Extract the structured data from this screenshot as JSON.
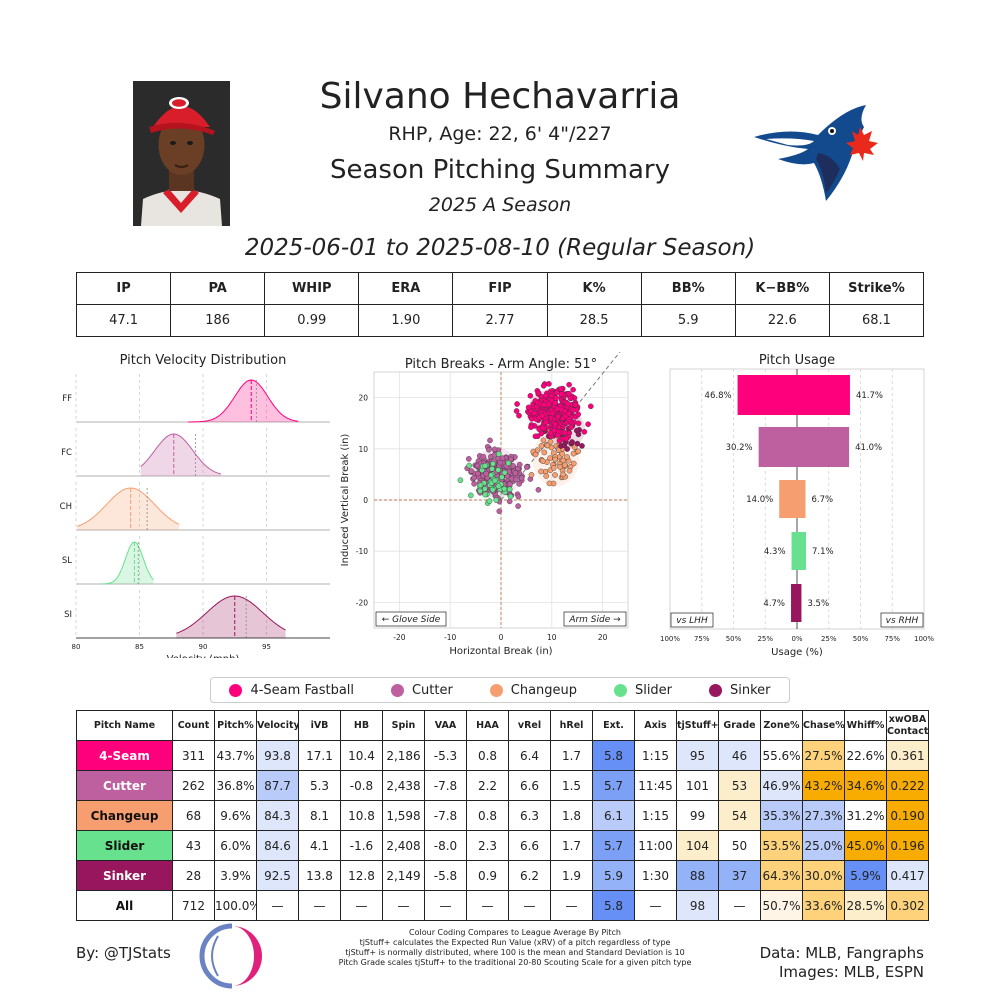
{
  "header": {
    "name": "Silvano Hechavarria",
    "bio": "RHP, Age: 22, 6' 4\"/227",
    "summary_title": "Season Pitching Summary",
    "season": "2025 A Season",
    "date_range": "2025-06-01 to 2025-08-10 (Regular Season)"
  },
  "season_stats": {
    "headers": [
      "IP",
      "PA",
      "WHIP",
      "ERA",
      "FIP",
      "K%",
      "BB%",
      "K−BB%",
      "Strike%"
    ],
    "values": [
      "47.1",
      "186",
      "0.99",
      "1.90",
      "2.77",
      "28.5",
      "5.9",
      "22.6",
      "68.1"
    ]
  },
  "pitch_colors": {
    "4-Seam": "#FF007D",
    "Cutter": "#BE5FA0",
    "Changeup": "#F79E70",
    "Slider": "#67E18D",
    "Sinker": "#98165D"
  },
  "legend": [
    "4-Seam Fastball",
    "Cutter",
    "Changeup",
    "Slider",
    "Sinker"
  ],
  "chart_data": [
    {
      "type": "area",
      "title": "Pitch Velocity Distribution",
      "xlabel": "Velocity (mph)",
      "xlim": [
        80,
        100
      ],
      "xticks": [
        80,
        85,
        90,
        95
      ],
      "series": [
        {
          "name": "FF",
          "color": "#FF007D",
          "mean": 93.8,
          "league_mean": 94.2,
          "sd": 1.3,
          "min": 88.8,
          "max": 97.5
        },
        {
          "name": "FC",
          "color": "#BE5FA0",
          "mean": 87.7,
          "league_mean": 89.4,
          "sd": 1.5,
          "min": 85.1,
          "max": 91.4
        },
        {
          "name": "CH",
          "color": "#F79E70",
          "mean": 84.3,
          "league_mean": 85.6,
          "sd": 1.9,
          "min": 80.1,
          "max": 88.1
        },
        {
          "name": "SL",
          "color": "#67E18D",
          "mean": 84.6,
          "league_mean": 84.9,
          "sd": 0.7,
          "min": 82.0,
          "max": 86.1
        },
        {
          "name": "SI",
          "color": "#98165D",
          "mean": 92.5,
          "league_mean": 93.4,
          "sd": 2.2,
          "min": 87.9,
          "max": 96.5
        }
      ]
    },
    {
      "type": "scatter",
      "title": "Pitch Breaks - Arm Angle: 51°",
      "xlabel": "Horizontal Break (in)",
      "ylabel": "Induced Vertical Break (in)",
      "xlim": [
        -25,
        25
      ],
      "ylim": [
        -25,
        25
      ],
      "xticks": [
        -20,
        -10,
        0,
        10,
        20
      ],
      "yticks": [
        -20,
        -10,
        0,
        10,
        20
      ],
      "arm_angle_deg": 51,
      "glove_label": "← Glove Side",
      "arm_label": "Arm Side →",
      "series": [
        {
          "name": "4-Seam",
          "color": "#FF007D",
          "center": [
            10.4,
            17.1
          ],
          "spread": [
            2.5,
            2.2
          ],
          "n": 311
        },
        {
          "name": "Cutter",
          "color": "#BE5FA0",
          "center": [
            -0.8,
            5.3
          ],
          "spread": [
            2.3,
            2.3
          ],
          "n": 262
        },
        {
          "name": "Changeup",
          "color": "#F79E70",
          "center": [
            10.8,
            8.1
          ],
          "spread": [
            2.2,
            2.6
          ],
          "n": 68
        },
        {
          "name": "Slider",
          "color": "#67E18D",
          "center": [
            -1.6,
            4.1
          ],
          "spread": [
            2.0,
            2.0
          ],
          "n": 43
        },
        {
          "name": "Sinker",
          "color": "#98165D",
          "center": [
            12.8,
            13.8
          ],
          "spread": [
            1.8,
            1.8
          ],
          "n": 28
        }
      ]
    },
    {
      "type": "bar",
      "title": "Pitch Usage",
      "xlabel": "Usage (%)",
      "xlim": [
        -100,
        100
      ],
      "xtick_labels": [
        "100%",
        "75%",
        "50%",
        "25%",
        "0%",
        "25%",
        "50%",
        "75%",
        "100%"
      ],
      "left_label": "vs LHH",
      "right_label": "vs RHH",
      "categories": [
        "4-Seam",
        "Cutter",
        "Changeup",
        "Slider",
        "Sinker"
      ],
      "series": [
        {
          "name": "vs LHH",
          "values": [
            46.8,
            30.2,
            14.0,
            4.3,
            4.7
          ],
          "labels": [
            "46.8%",
            "30.2%",
            "14.0%",
            "4.3%",
            "4.7%"
          ]
        },
        {
          "name": "vs RHH",
          "values": [
            41.7,
            41.0,
            6.7,
            7.1,
            3.5
          ],
          "labels": [
            "41.7%",
            "41.0%",
            "6.7%",
            "7.1%",
            "3.5%"
          ]
        }
      ]
    }
  ],
  "pitch_table": {
    "headers": [
      "Pitch Name",
      "Count",
      "Pitch%",
      "Velocity",
      "iVB",
      "HB",
      "Spin",
      "VAA",
      "HAA",
      "vRel",
      "hRel",
      "Ext.",
      "Axis",
      "tjStuff+",
      "Grade",
      "Zone%",
      "Chase%",
      "Whiff%",
      "xwOBA Contact"
    ],
    "rows": [
      {
        "name": "4-Seam",
        "bg": "#FF007D",
        "fg": "#ffffff",
        "cells": [
          "311",
          "43.7%",
          "93.8",
          "17.1",
          "10.4",
          "2,186",
          "-5.3",
          "0.8",
          "6.4",
          "1.7",
          "5.8",
          "1:15",
          "95",
          "46",
          "55.6%",
          "27.5%",
          "22.6%",
          "0.361"
        ],
        "colors": [
          "",
          "",
          "#dde6fb",
          "",
          "",
          "",
          "",
          "",
          "",
          "",
          "#6690f5",
          "",
          "#dde6fb",
          "#dde6fb",
          "",
          "#fdd27a",
          "",
          "#fdeecb"
        ]
      },
      {
        "name": "Cutter",
        "bg": "#BE5FA0",
        "fg": "#ffffff",
        "cells": [
          "262",
          "36.8%",
          "87.7",
          "5.3",
          "-0.8",
          "2,438",
          "-7.8",
          "2.2",
          "6.6",
          "1.5",
          "5.7",
          "11:45",
          "101",
          "53",
          "46.9%",
          "43.2%",
          "34.6%",
          "0.222"
        ],
        "colors": [
          "",
          "",
          "#b9ccf9",
          "",
          "",
          "",
          "",
          "",
          "",
          "",
          "#7ba0f6",
          "",
          "",
          "#fdeecb",
          "#dde6fb",
          "#f8ab00",
          "#f8ab00",
          "#f8ab00"
        ]
      },
      {
        "name": "Changeup",
        "bg": "#F79E70",
        "fg": "#111111",
        "cells": [
          "68",
          "9.6%",
          "84.3",
          "8.1",
          "10.8",
          "1,598",
          "-7.8",
          "0.8",
          "6.3",
          "1.8",
          "6.1",
          "1:15",
          "99",
          "54",
          "35.3%",
          "27.3%",
          "31.2%",
          "0.190"
        ],
        "colors": [
          "",
          "",
          "#dde6fb",
          "",
          "",
          "",
          "",
          "",
          "",
          "",
          "#b9ccf9",
          "",
          "",
          "#fdeecb",
          "#b9ccf9",
          "#b9ccf9",
          "",
          "#f8ab00"
        ]
      },
      {
        "name": "Slider",
        "bg": "#67E18D",
        "fg": "#111111",
        "cells": [
          "43",
          "6.0%",
          "84.6",
          "4.1",
          "-1.6",
          "2,408",
          "-8.0",
          "2.3",
          "6.6",
          "1.7",
          "5.7",
          "11:00",
          "104",
          "50",
          "53.5%",
          "25.0%",
          "45.0%",
          "0.196"
        ],
        "colors": [
          "",
          "",
          "#dde6fb",
          "",
          "",
          "",
          "",
          "",
          "",
          "",
          "#7ba0f6",
          "",
          "#fdeecb",
          "",
          "#fdd27a",
          "#b9ccf9",
          "#f8ab00",
          "#f8ab00"
        ]
      },
      {
        "name": "Sinker",
        "bg": "#98165D",
        "fg": "#ffffff",
        "cells": [
          "28",
          "3.9%",
          "92.5",
          "13.8",
          "12.8",
          "2,149",
          "-5.8",
          "0.9",
          "6.2",
          "1.9",
          "5.9",
          "1:30",
          "88",
          "37",
          "64.3%",
          "30.0%",
          "5.9%",
          "0.417"
        ],
        "colors": [
          "",
          "",
          "#dde6fb",
          "",
          "",
          "",
          "",
          "",
          "",
          "",
          "#93b2f7",
          "",
          "#93b2f7",
          "#93b2f7",
          "#fdd27a",
          "#fdd27a",
          "#6690f5",
          "#dde6fb"
        ]
      },
      {
        "name": "All",
        "bg": "#ffffff",
        "fg": "#111111",
        "cells": [
          "712",
          "100.0%",
          "—",
          "—",
          "—",
          "—",
          "—",
          "—",
          "—",
          "—",
          "5.8",
          "—",
          "98",
          "—",
          "50.7%",
          "33.6%",
          "28.5%",
          "0.302"
        ],
        "colors": [
          "",
          "",
          "",
          "",
          "",
          "",
          "",
          "",
          "",
          "",
          "#6690f5",
          "",
          "#dde6fb",
          "",
          "#fff5e6",
          "#fdd27a",
          "#fdeecb",
          "#fdd27a"
        ]
      }
    ]
  },
  "footer": {
    "byline": "By: @TJStats",
    "notes": [
      "Colour Coding Compares to League Average By Pitch",
      "tjStuff+ calculates the Expected Run Value (xRV) of a pitch regardless of type",
      "tjStuff+ is normally distributed, where 100 is the mean and Standard Deviation is 10",
      "Pitch Grade scales tjStuff+ to the traditional 20-80 Scouting Scale for a given pitch type"
    ],
    "source_line1": "Data: MLB, Fangraphs",
    "source_line2": "Images: MLB, ESPN"
  }
}
